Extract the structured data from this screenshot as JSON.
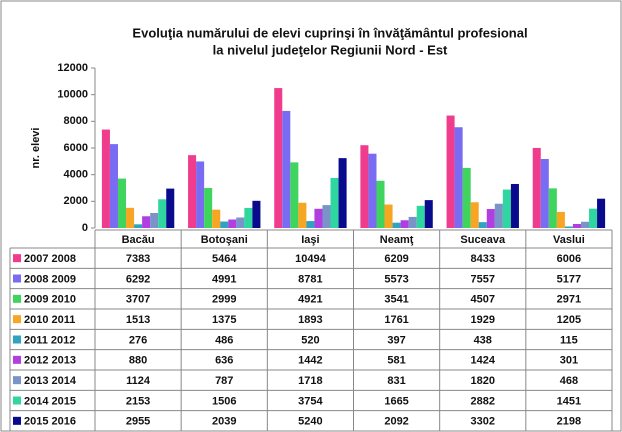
{
  "chart_data": {
    "type": "bar",
    "title": [
      "Evoluţia numărului de elevi cuprinşi în învăţământul profesional",
      "la nivelul judeţelor Regiunii Nord - Est"
    ],
    "y_label": "nr. elevi",
    "categories": [
      "Bacău",
      "Botoşani",
      "Iaşi",
      "Neamţ",
      "Suceava",
      "Vaslui"
    ],
    "series": [
      {
        "name": "2007 2008",
        "color": "#f03c8c",
        "values": [
          7383,
          5464,
          10494,
          6209,
          8433,
          6006
        ]
      },
      {
        "name": "2008 2009",
        "color": "#7a6cf2",
        "values": [
          6292,
          4991,
          8781,
          5573,
          7557,
          5177
        ]
      },
      {
        "name": "2009 2010",
        "color": "#3ed45e",
        "values": [
          3707,
          2999,
          4921,
          3541,
          4507,
          2971
        ]
      },
      {
        "name": "2010 2011",
        "color": "#f7a624",
        "values": [
          1513,
          1375,
          1893,
          1761,
          1929,
          1205
        ]
      },
      {
        "name": "2011 2012",
        "color": "#2fa3c0",
        "values": [
          276,
          486,
          520,
          397,
          438,
          115
        ]
      },
      {
        "name": "2012 2013",
        "color": "#b03ee0",
        "values": [
          880,
          636,
          1442,
          581,
          1424,
          301
        ]
      },
      {
        "name": "2013 2014",
        "color": "#7a93c8",
        "values": [
          1124,
          787,
          1718,
          831,
          1820,
          468
        ]
      },
      {
        "name": "2014 2015",
        "color": "#2fd6a0",
        "values": [
          2153,
          1506,
          3754,
          1665,
          2882,
          1451
        ]
      },
      {
        "name": "2015 2016",
        "color": "#0a0a8c",
        "values": [
          2955,
          2039,
          5240,
          2092,
          3302,
          2198
        ]
      }
    ],
    "ylim": [
      0,
      12000
    ],
    "yticks": [
      0,
      2000,
      4000,
      6000,
      8000,
      10000,
      12000
    ],
    "grid": false
  }
}
